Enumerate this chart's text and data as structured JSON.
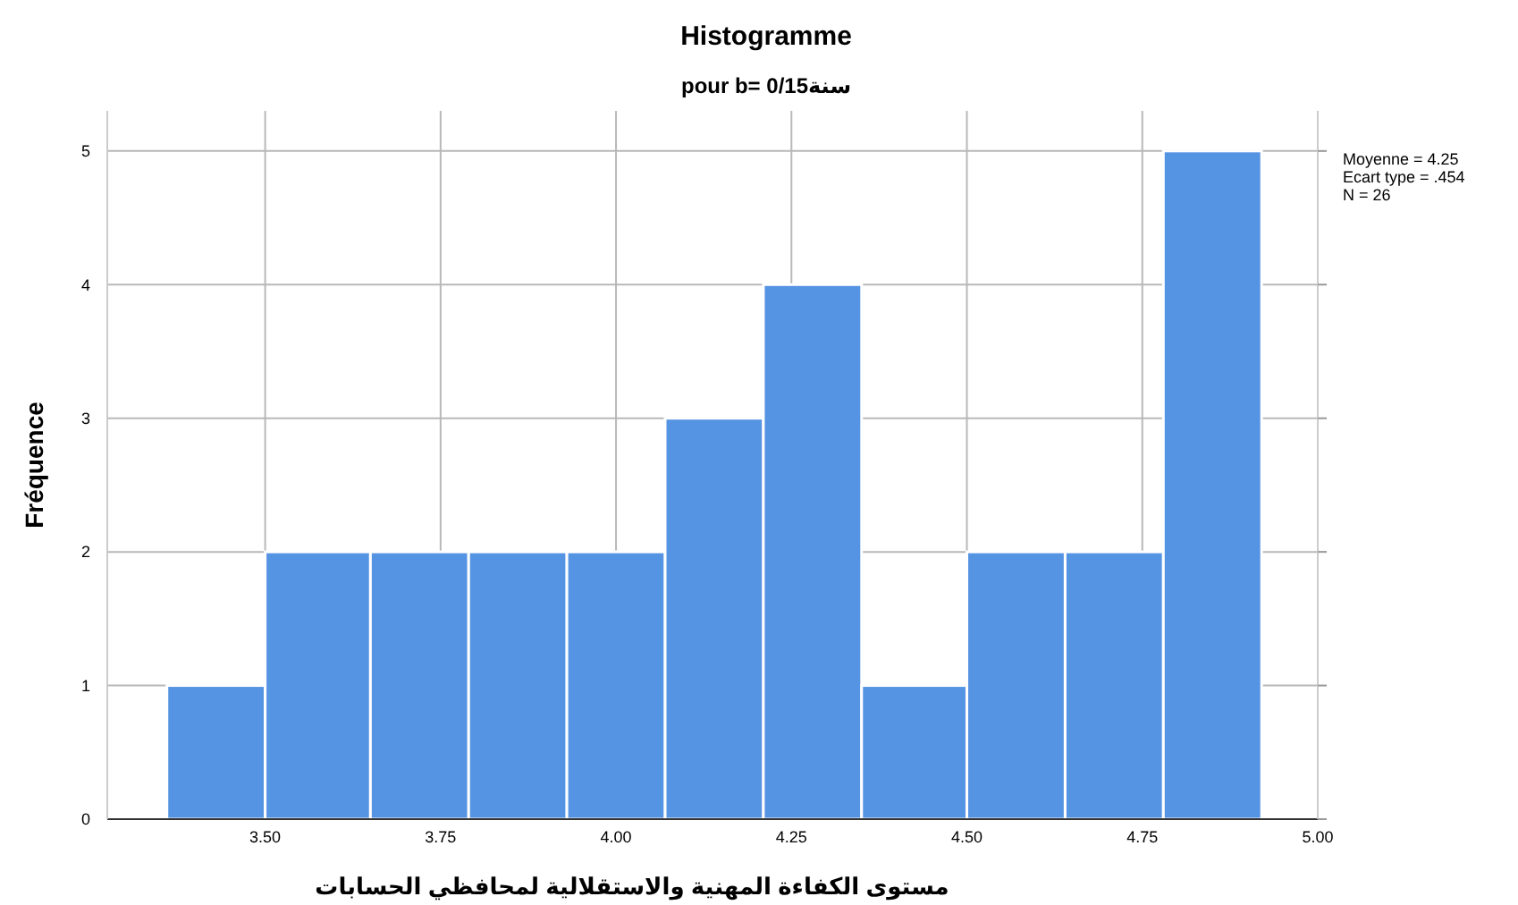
{
  "chart_data": {
    "type": "histogram",
    "title": "Histogramme",
    "subtitle": "pour b= 0/15سنة",
    "xlabel": "مستوى الكفاءة المهنية والاستقلالية لمحافظي الحسابات",
    "ylabel": "Fréquence",
    "bins": [
      3.36,
      3.5,
      3.65,
      3.79,
      3.93,
      4.07,
      4.21,
      4.35,
      4.5,
      4.64,
      4.78,
      4.92
    ],
    "values": [
      1,
      2,
      2,
      2,
      2,
      3,
      4,
      1,
      2,
      2,
      5
    ],
    "color": "#5593e3",
    "xlim": [
      3.275,
      5.0
    ],
    "ylim": [
      0,
      5.3
    ],
    "xticks": [
      {
        "value": 3.5,
        "label": "3.50"
      },
      {
        "value": 3.75,
        "label": "3.75"
      },
      {
        "value": 4.0,
        "label": "4.00"
      },
      {
        "value": 4.25,
        "label": "4.25"
      },
      {
        "value": 4.5,
        "label": "4.50"
      },
      {
        "value": 4.75,
        "label": "4.75"
      },
      {
        "value": 5.0,
        "label": "5.00"
      }
    ],
    "yticks": [
      0,
      1,
      2,
      3,
      4,
      5
    ],
    "grid": true,
    "annotations": [
      "Moyenne = 4.25",
      "Ecart type = .454",
      "N = 26"
    ]
  }
}
